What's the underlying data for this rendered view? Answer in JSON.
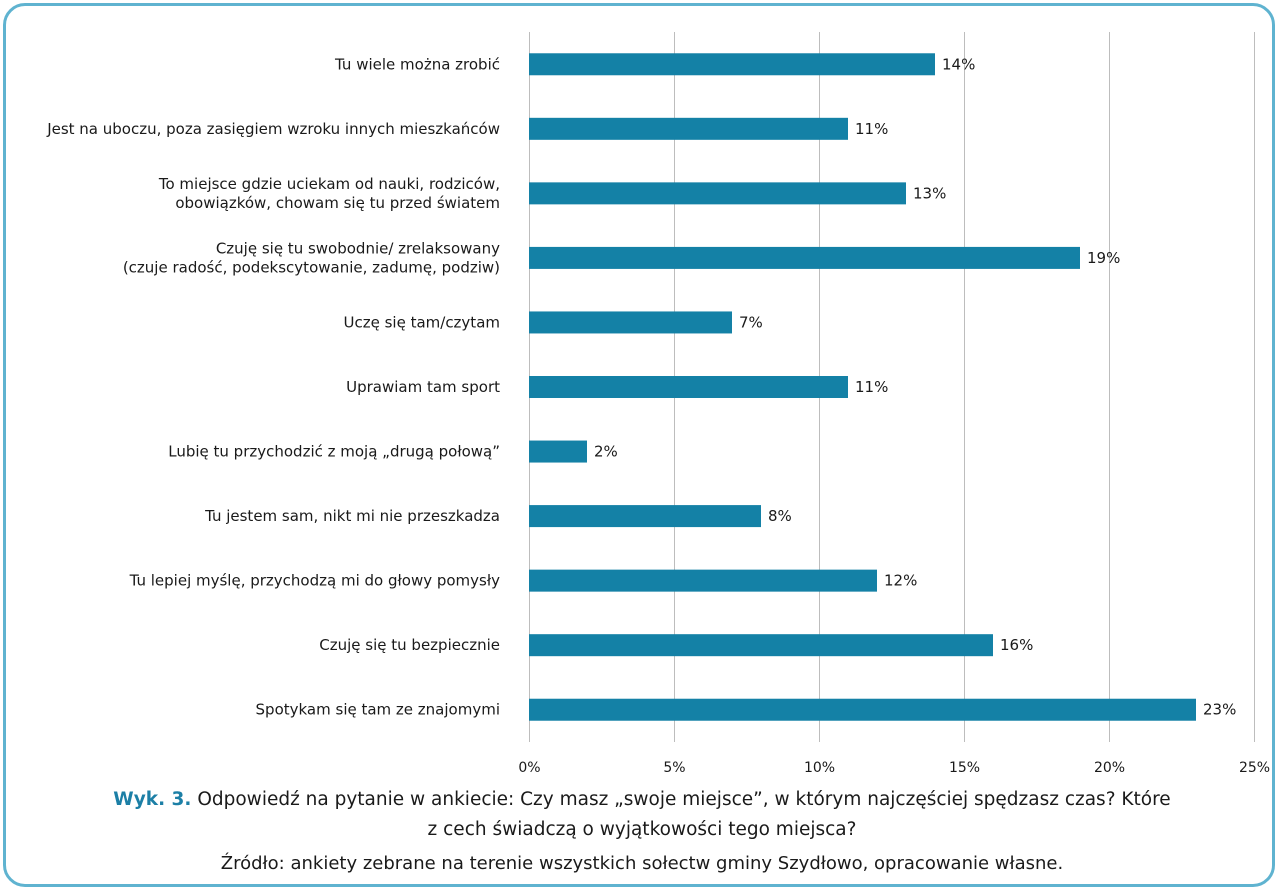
{
  "colors": {
    "bar": "#1481a6",
    "grid": "#bdbdbd",
    "frame": "#5fb3d0",
    "caption_accent": "#1c7fa6"
  },
  "chart_data": {
    "type": "bar",
    "orientation": "horizontal",
    "categories": [
      [
        "Tu wiele można zrobić"
      ],
      [
        "Jest na uboczu, poza zasięgiem wzroku innych mieszkańców"
      ],
      [
        "To miejsce gdzie uciekam od nauki, rodziców,",
        "obowiązków, chowam się tu przed światem"
      ],
      [
        "Czuję się tu swobodnie/ zrelaksowany",
        "(czuje radość, podekscytowanie, zadumę, podziw)"
      ],
      [
        "Uczę się tam/czytam"
      ],
      [
        "Uprawiam tam sport"
      ],
      [
        "Lubię tu przychodzić z moją „drugą połową”"
      ],
      [
        "Tu jestem sam, nikt mi nie przeszkadza"
      ],
      [
        "Tu lepiej myślę, przychodzą mi do głowy pomysły"
      ],
      [
        "Czuję się tu bezpiecznie"
      ],
      [
        "Spotykam się tam ze znajomymi"
      ]
    ],
    "values": [
      14,
      11,
      13,
      19,
      7,
      11,
      2,
      8,
      12,
      16,
      23
    ],
    "value_labels": [
      "14%",
      "11%",
      "13%",
      "19%",
      "7%",
      "11%",
      "2%",
      "8%",
      "12%",
      "16%",
      "23%"
    ],
    "xlim": [
      0,
      25
    ],
    "x_ticks": [
      "0%",
      "5%",
      "10%",
      "15%",
      "20%",
      "25%"
    ],
    "grid": true
  },
  "caption": {
    "prefix": "Wyk. 3.",
    "line1": " Odpowiedź na pytanie w ankiecie: Czy masz „swoje miejsce”, w którym najczęściej spędzasz czas? Które",
    "line2": "z cech świadczą o wyjątkowości tego miejsca?",
    "source": "Źródło: ankiety zebrane na terenie wszystkich sołectw gminy Szydłowo, opracowanie własne."
  }
}
